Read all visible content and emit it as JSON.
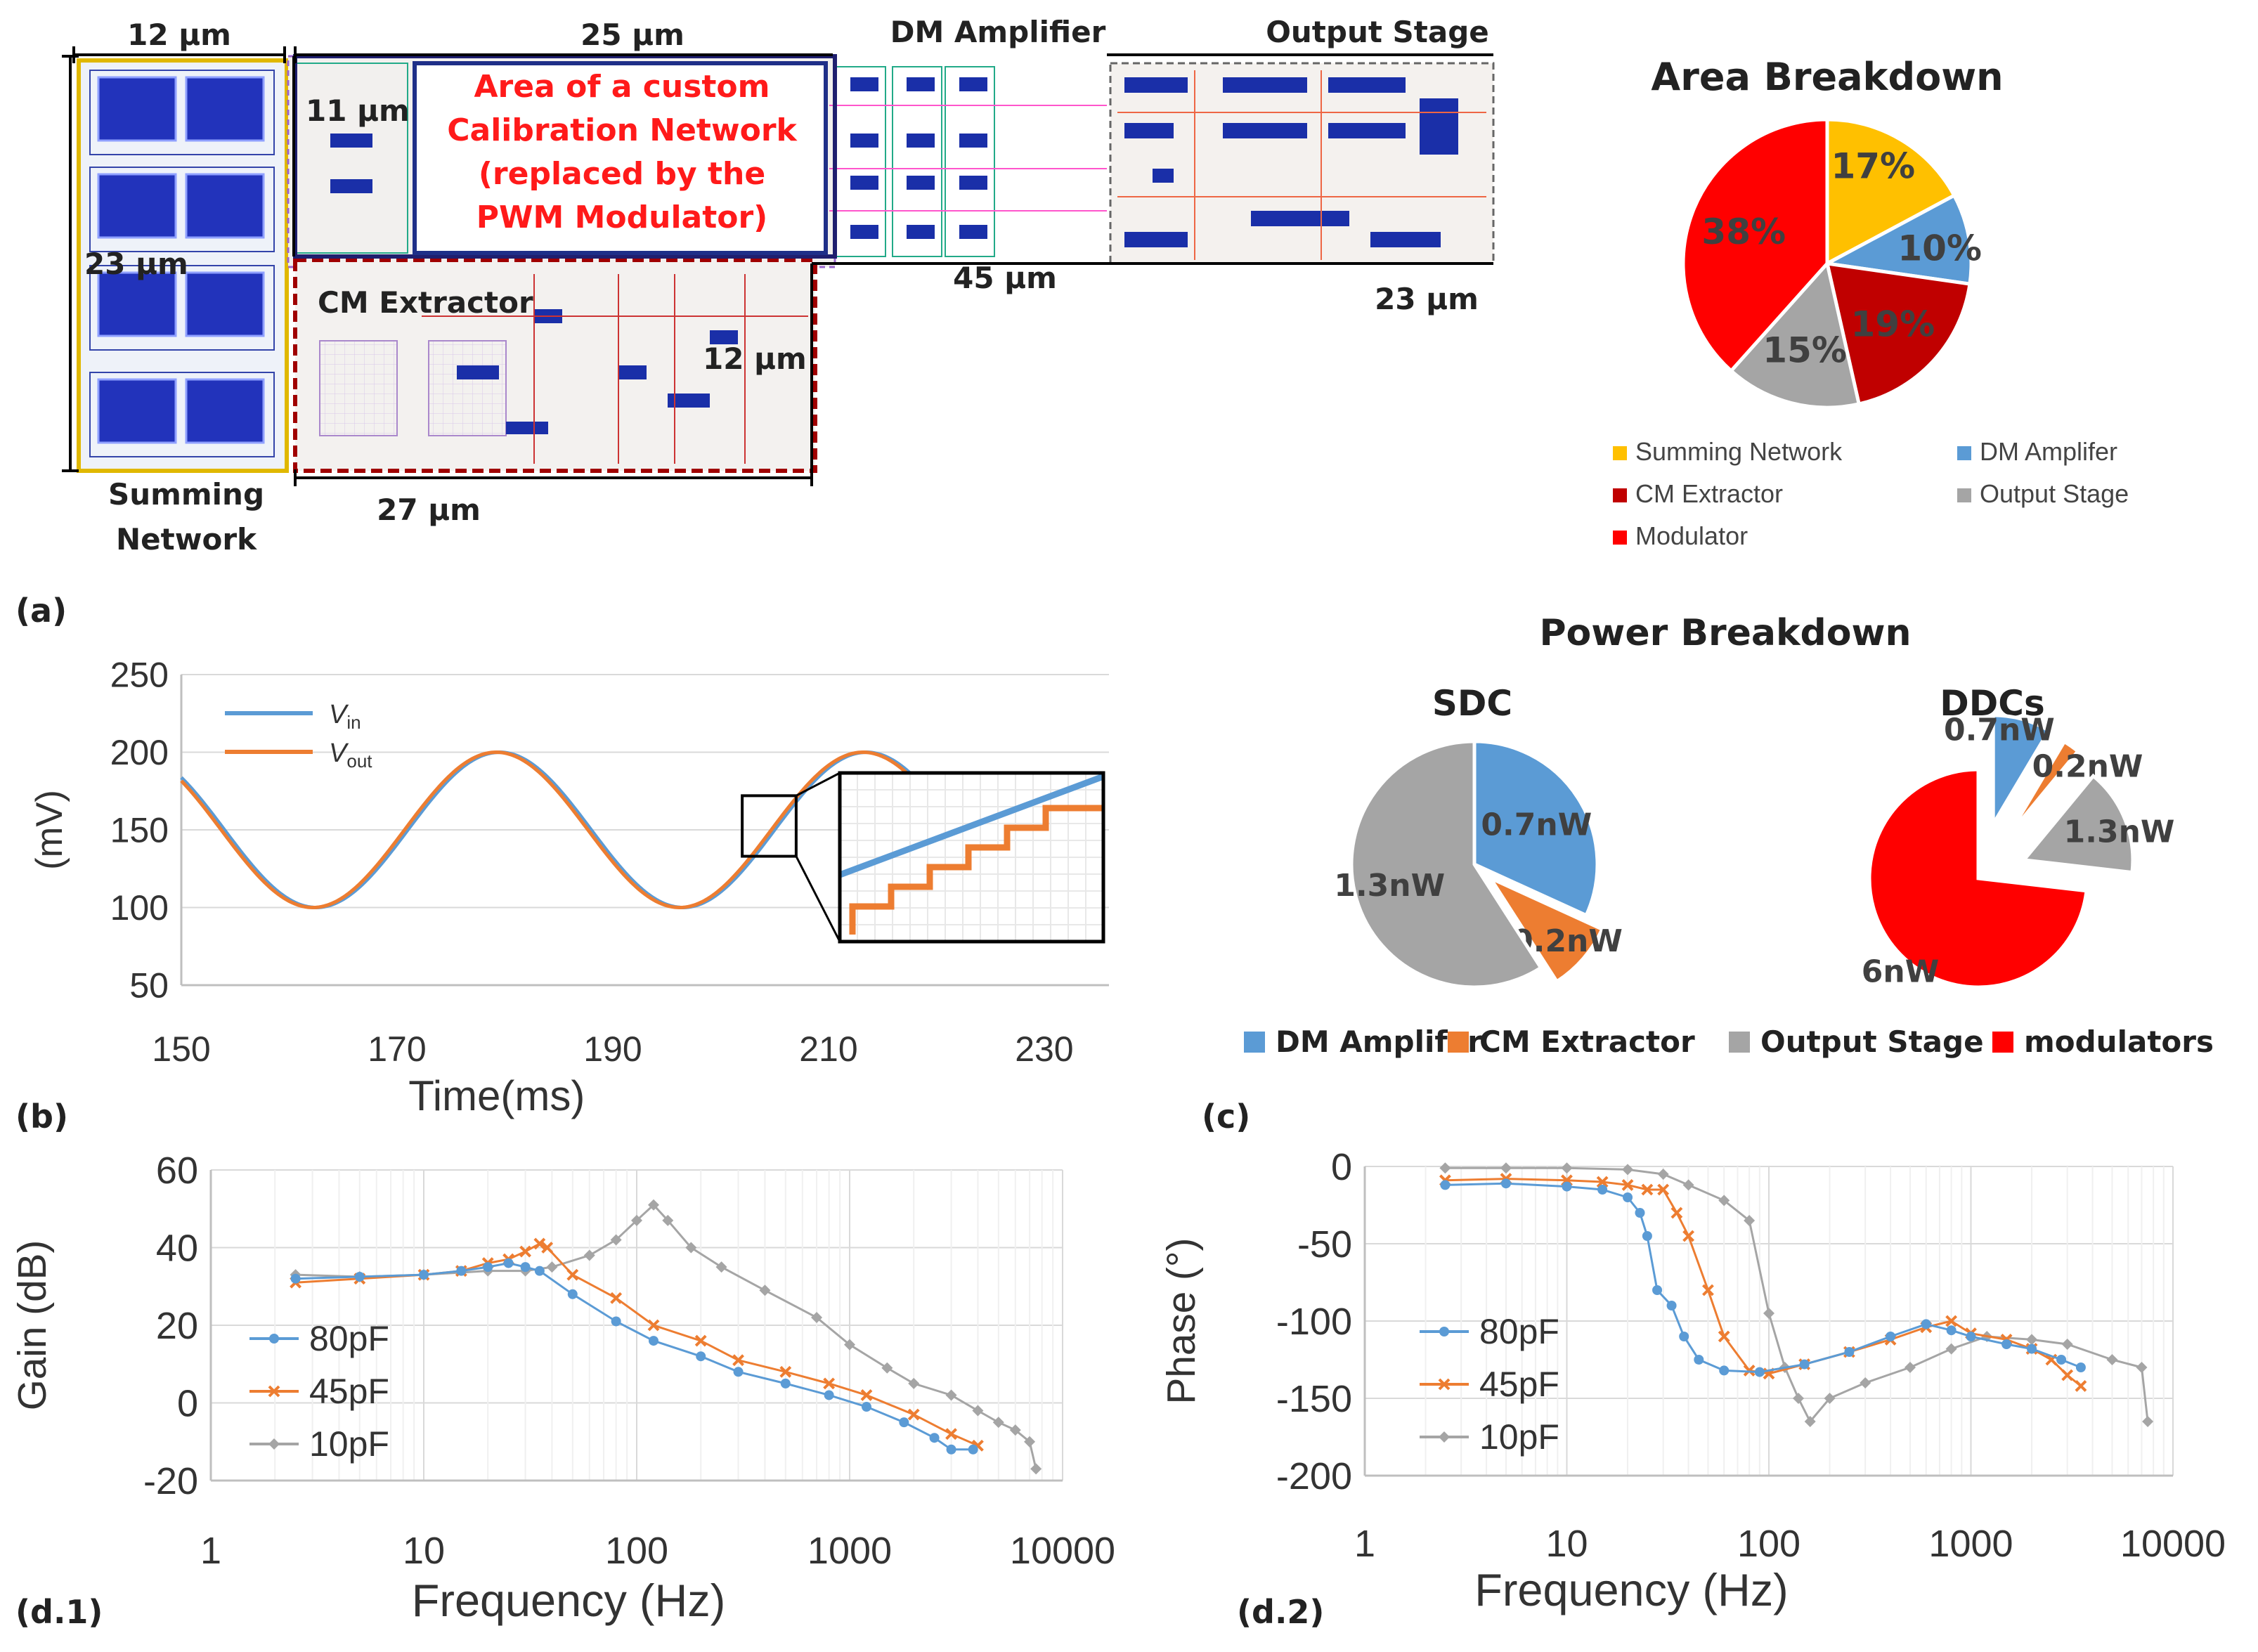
{
  "panel_labels": {
    "a": "(a)",
    "b": "(b)",
    "c": "(c)",
    "d1": "(d.1)",
    "d2": "(d.2)"
  },
  "layout_labels": {
    "dim_12um_top": "12 µm",
    "dim_25um": "25 µm",
    "dm_amplifier": "DM Amplifier",
    "output_stage": "Output Stage",
    "dim_11um": "11 µm",
    "dim_23um_left": "23 µm",
    "cm_extractor": "CM Extractor",
    "dim_12um_mid": "12 µm",
    "dim_45um": "45 µm",
    "dim_23um_right": "23 µm",
    "dim_27um": "27 µm",
    "summing": "Summing",
    "network": "Network",
    "cal_line1": "Area of a custom",
    "cal_line2": "Calibration Network",
    "cal_line3": "(replaced by the",
    "cal_line4": "PWM Modulator)"
  },
  "colors": {
    "blue": "#5b9bd5",
    "orange": "#ed7d31",
    "gray": "#a5a5a5",
    "yellow": "#ffc000",
    "darkred": "#c00000",
    "red": "#ff0000"
  },
  "chart_data": [
    {
      "id": "area_breakdown",
      "type": "pie",
      "title": "Area Breakdown",
      "slices": [
        {
          "label": "Summing Network",
          "value": 17,
          "text": "17%",
          "color": "#ffc000"
        },
        {
          "label": "DM Amplifer",
          "value": 10,
          "text": "10%",
          "color": "#5b9bd5"
        },
        {
          "label": "CM Extractor",
          "value": 19,
          "text": "19%",
          "color": "#c00000"
        },
        {
          "label": "Output Stage",
          "value": 15,
          "text": "15%",
          "color": "#a5a5a5"
        },
        {
          "label": "Modulator",
          "value": 38,
          "text": "38%",
          "color": "#ff0000"
        }
      ],
      "legend": [
        "Summing Network",
        "DM Amplifer",
        "CM Extractor",
        "Output Stage",
        "Modulator"
      ]
    },
    {
      "id": "power_sdc",
      "type": "pie",
      "title": "Power Breakdown",
      "subtitle": "SDC",
      "slices": [
        {
          "label": "DM Amplifer",
          "value": 0.7,
          "text": "0.7nW",
          "color": "#5b9bd5"
        },
        {
          "label": "CM Extractor",
          "value": 0.2,
          "text": "0.2nW",
          "color": "#ed7d31"
        },
        {
          "label": "Output Stage",
          "value": 1.3,
          "text": "1.3nW",
          "color": "#a5a5a5"
        }
      ]
    },
    {
      "id": "power_ddcs",
      "type": "pie",
      "subtitle": "DDCs",
      "slices": [
        {
          "label": "DM Amplifer",
          "value": 0.7,
          "text": "0.7nW",
          "color": "#5b9bd5"
        },
        {
          "label": "CM Extractor",
          "value": 0.2,
          "text": "0.2nW",
          "color": "#ed7d31"
        },
        {
          "label": "Output Stage",
          "value": 1.3,
          "text": "1.3nW",
          "color": "#a5a5a5"
        },
        {
          "label": "modulators",
          "value": 6,
          "text": "6nW",
          "color": "#ff0000"
        }
      ],
      "legend": [
        "DM Amplifer",
        "CM Extractor",
        "Output Stage",
        "modulators"
      ]
    },
    {
      "id": "transient",
      "type": "line",
      "xlabel": "Time(ms)",
      "ylabel": "(mV)",
      "xlim": [
        150,
        236
      ],
      "ylim": [
        50,
        250
      ],
      "xticks": [
        150,
        170,
        190,
        210,
        230
      ],
      "yticks": [
        50,
        100,
        150,
        200,
        250
      ],
      "series": [
        {
          "name": "V",
          "sub": "in",
          "color": "#5b9bd5",
          "center": 150,
          "amplitude": 50,
          "period_ms": 34,
          "peak_at_ms": 179.5
        },
        {
          "name": "V",
          "sub": "out",
          "color": "#ed7d31",
          "center": 150,
          "amplitude": 50,
          "period_ms": 34,
          "peak_at_ms": 179.2
        }
      ]
    },
    {
      "id": "gain",
      "type": "line",
      "xscale": "log",
      "xlabel": "Frequency (Hz)",
      "ylabel": "Gain (dB)",
      "xlim": [
        1,
        10000
      ],
      "ylim": [
        -20,
        60
      ],
      "xticks": [
        1,
        10,
        100,
        1000,
        10000
      ],
      "yticks": [
        -20,
        0,
        20,
        40,
        60
      ],
      "series": [
        {
          "name": "80pF",
          "color": "#5b9bd5",
          "marker": "circle",
          "points": [
            [
              2.5,
              32
            ],
            [
              5,
              32.5
            ],
            [
              10,
              33
            ],
            [
              15,
              34
            ],
            [
              20,
              35
            ],
            [
              25,
              36
            ],
            [
              30,
              35
            ],
            [
              35,
              34
            ],
            [
              50,
              28
            ],
            [
              80,
              21
            ],
            [
              120,
              16
            ],
            [
              200,
              12
            ],
            [
              300,
              8
            ],
            [
              500,
              5
            ],
            [
              800,
              2
            ],
            [
              1200,
              -1
            ],
            [
              1800,
              -5
            ],
            [
              2500,
              -9
            ],
            [
              3000,
              -12
            ],
            [
              3800,
              -12
            ]
          ]
        },
        {
          "name": "45pF",
          "color": "#ed7d31",
          "marker": "x",
          "points": [
            [
              2.5,
              31
            ],
            [
              5,
              32
            ],
            [
              10,
              33
            ],
            [
              15,
              34
            ],
            [
              20,
              36
            ],
            [
              25,
              37
            ],
            [
              30,
              39
            ],
            [
              35,
              41
            ],
            [
              38,
              40
            ],
            [
              50,
              33
            ],
            [
              80,
              27
            ],
            [
              120,
              20
            ],
            [
              200,
              16
            ],
            [
              300,
              11
            ],
            [
              500,
              8
            ],
            [
              800,
              5
            ],
            [
              1200,
              2
            ],
            [
              2000,
              -3
            ],
            [
              3000,
              -8
            ],
            [
              4000,
              -11
            ]
          ]
        },
        {
          "name": "10pF",
          "color": "#a5a5a5",
          "marker": "diamond",
          "points": [
            [
              2.5,
              33
            ],
            [
              5,
              32.5
            ],
            [
              10,
              33
            ],
            [
              20,
              34
            ],
            [
              30,
              34
            ],
            [
              40,
              35
            ],
            [
              60,
              38
            ],
            [
              80,
              42
            ],
            [
              100,
              47
            ],
            [
              120,
              51
            ],
            [
              140,
              47
            ],
            [
              180,
              40
            ],
            [
              250,
              35
            ],
            [
              400,
              29
            ],
            [
              700,
              22
            ],
            [
              1000,
              15
            ],
            [
              1500,
              9
            ],
            [
              2000,
              5
            ],
            [
              3000,
              2
            ],
            [
              4000,
              -2
            ],
            [
              5000,
              -5
            ],
            [
              6000,
              -7
            ],
            [
              7000,
              -10
            ],
            [
              7500,
              -17
            ]
          ]
        }
      ]
    },
    {
      "id": "phase",
      "type": "line",
      "xscale": "log",
      "xlabel": "Frequency (Hz)",
      "ylabel": "Phase (°)",
      "xlim": [
        1,
        10000
      ],
      "ylim": [
        -200,
        0
      ],
      "xticks": [
        1,
        10,
        100,
        1000,
        10000
      ],
      "yticks": [
        -200,
        -150,
        -100,
        -50,
        0
      ],
      "series": [
        {
          "name": "80pF",
          "color": "#5b9bd5",
          "marker": "circle",
          "points": [
            [
              2.5,
              -12
            ],
            [
              5,
              -11
            ],
            [
              10,
              -13
            ],
            [
              15,
              -15
            ],
            [
              20,
              -20
            ],
            [
              23,
              -30
            ],
            [
              25,
              -45
            ],
            [
              28,
              -80
            ],
            [
              33,
              -90
            ],
            [
              38,
              -110
            ],
            [
              45,
              -125
            ],
            [
              60,
              -132
            ],
            [
              90,
              -133
            ],
            [
              150,
              -128
            ],
            [
              250,
              -120
            ],
            [
              400,
              -110
            ],
            [
              600,
              -102
            ],
            [
              800,
              -106
            ],
            [
              1000,
              -110
            ],
            [
              1500,
              -115
            ],
            [
              2000,
              -118
            ],
            [
              2800,
              -125
            ],
            [
              3500,
              -130
            ]
          ]
        },
        {
          "name": "45pF",
          "color": "#ed7d31",
          "marker": "x",
          "points": [
            [
              2.5,
              -9
            ],
            [
              5,
              -8
            ],
            [
              10,
              -9
            ],
            [
              15,
              -10
            ],
            [
              20,
              -12
            ],
            [
              25,
              -15
            ],
            [
              30,
              -15
            ],
            [
              35,
              -30
            ],
            [
              40,
              -45
            ],
            [
              50,
              -80
            ],
            [
              60,
              -110
            ],
            [
              80,
              -132
            ],
            [
              100,
              -134
            ],
            [
              150,
              -128
            ],
            [
              250,
              -120
            ],
            [
              400,
              -112
            ],
            [
              600,
              -104
            ],
            [
              800,
              -100
            ],
            [
              1000,
              -108
            ],
            [
              1500,
              -112
            ],
            [
              2000,
              -118
            ],
            [
              2500,
              -125
            ],
            [
              3000,
              -135
            ],
            [
              3500,
              -142
            ]
          ]
        },
        {
          "name": "10pF",
          "color": "#a5a5a5",
          "marker": "diamond",
          "points": [
            [
              2.5,
              -1
            ],
            [
              5,
              -1
            ],
            [
              10,
              -1
            ],
            [
              20,
              -2
            ],
            [
              30,
              -5
            ],
            [
              40,
              -12
            ],
            [
              60,
              -22
            ],
            [
              80,
              -35
            ],
            [
              100,
              -95
            ],
            [
              120,
              -130
            ],
            [
              140,
              -150
            ],
            [
              160,
              -165
            ],
            [
              200,
              -150
            ],
            [
              300,
              -140
            ],
            [
              500,
              -130
            ],
            [
              800,
              -118
            ],
            [
              1200,
              -110
            ],
            [
              2000,
              -112
            ],
            [
              3000,
              -115
            ],
            [
              5000,
              -125
            ],
            [
              7000,
              -130
            ],
            [
              7500,
              -165
            ]
          ]
        }
      ]
    }
  ]
}
